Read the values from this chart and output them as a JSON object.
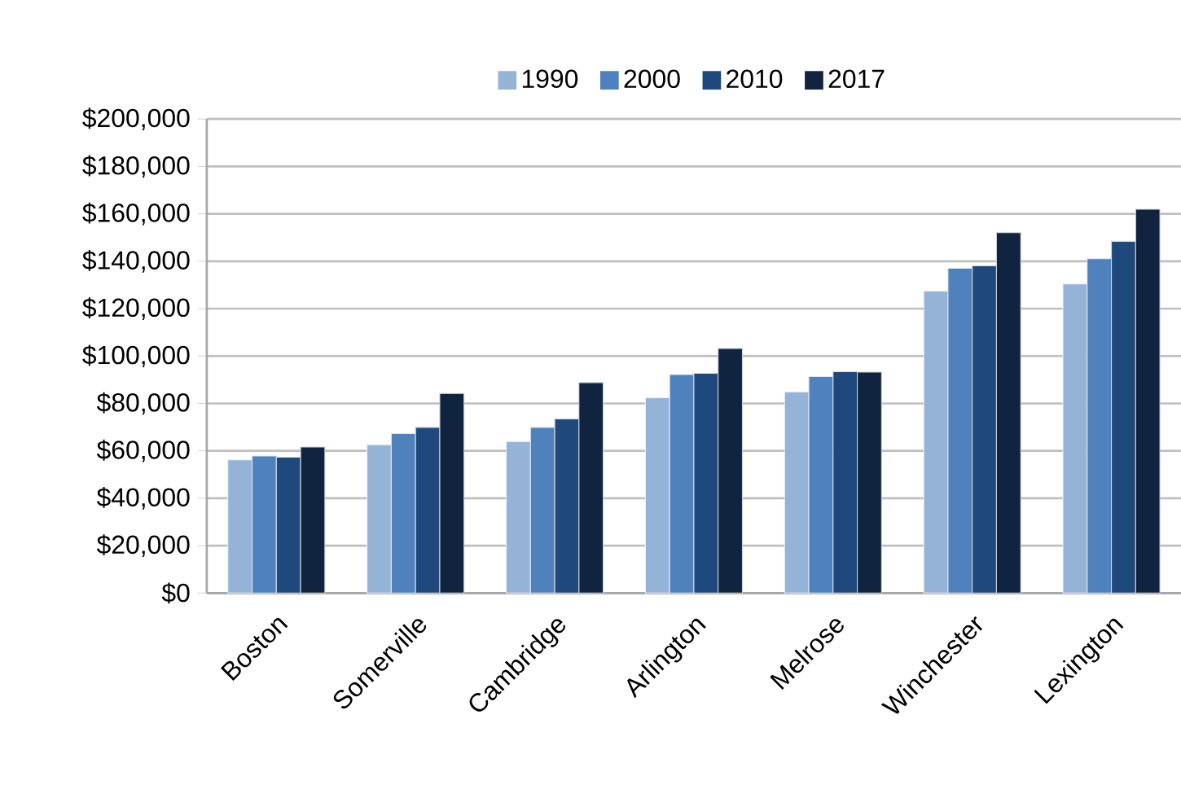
{
  "chart_data": {
    "type": "bar",
    "categories": [
      "Boston",
      "Somerville",
      "Cambridge",
      "Arlington",
      "Melrose",
      "Winchester",
      "Lexington"
    ],
    "series": [
      {
        "name": "1990",
        "color": "#95b3d7",
        "values": [
          56200,
          62600,
          63900,
          82400,
          84900,
          127400,
          130400
        ]
      },
      {
        "name": "2000",
        "color": "#4f81bd",
        "values": [
          57800,
          67300,
          69900,
          92200,
          91300,
          137000,
          141100
        ]
      },
      {
        "name": "2010",
        "color": "#1f497d",
        "values": [
          57300,
          69900,
          73500,
          92700,
          93400,
          138100,
          148400
        ]
      },
      {
        "name": "2017",
        "color": "#10243f",
        "values": [
          61600,
          84200,
          88800,
          103200,
          93200,
          152100,
          161900
        ]
      }
    ],
    "ylim": [
      0,
      200000
    ],
    "yticks": [
      {
        "value": 0,
        "label": "$0"
      },
      {
        "value": 20000,
        "label": "$20,000"
      },
      {
        "value": 40000,
        "label": "$40,000"
      },
      {
        "value": 60000,
        "label": "$60,000"
      },
      {
        "value": 80000,
        "label": "$80,000"
      },
      {
        "value": 100000,
        "label": "$100,000"
      },
      {
        "value": 120000,
        "label": "$120,000"
      },
      {
        "value": 140000,
        "label": "$140,000"
      },
      {
        "value": 160000,
        "label": "$160,000"
      },
      {
        "value": 180000,
        "label": "$180,000"
      },
      {
        "value": 200000,
        "label": "$200,000"
      }
    ],
    "grid": "y",
    "legend": "top"
  }
}
